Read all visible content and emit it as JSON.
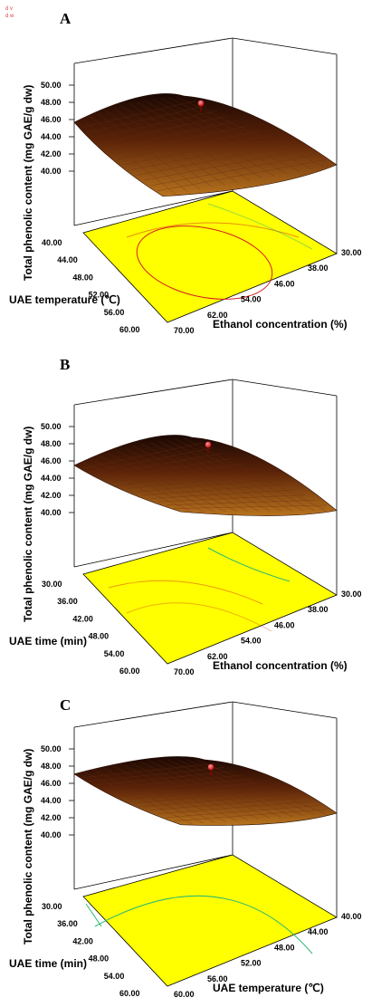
{
  "legend": {
    "line1": "d v",
    "line2": "d w"
  },
  "chart_data": [
    {
      "type": "surface",
      "panel": "A",
      "zlabel": "Total phenolic content (mg GAE/g dw)",
      "z_ticks": [
        "40.00",
        "42.00",
        "44.00",
        "46.00",
        "48.00",
        "50.00"
      ],
      "zlim": [
        40,
        50
      ],
      "x1_label": "UAE temperature (℃)",
      "x1_ticks": [
        "40.00",
        "44.00",
        "48.00",
        "52.00",
        "56.00",
        "60.00"
      ],
      "x2_label": "Ethanol concentration (%)",
      "x2_ticks": [
        "70.00",
        "62.00",
        "54.00",
        "46.00",
        "38.00",
        "30.00"
      ],
      "max_point": 48.2
    },
    {
      "type": "surface",
      "panel": "B",
      "zlabel": "Total phenolic content (mg GAE/g dw)",
      "z_ticks": [
        "40.00",
        "42.00",
        "44.00",
        "46.00",
        "48.00",
        "50.00"
      ],
      "zlim": [
        40,
        50
      ],
      "x1_label": "UAE time (min)",
      "x1_ticks": [
        "30.00",
        "36.00",
        "42.00",
        "48.00",
        "54.00",
        "60.00"
      ],
      "x2_label": "Ethanol concentration (%)",
      "x2_ticks": [
        "70.00",
        "62.00",
        "54.00",
        "46.00",
        "38.00",
        "30.00"
      ],
      "max_point": 48.2
    },
    {
      "type": "surface",
      "panel": "C",
      "zlabel": "Total phenolic content (mg GAE/g dw)",
      "z_ticks": [
        "40.00",
        "42.00",
        "44.00",
        "46.00",
        "48.00",
        "50.00"
      ],
      "zlim": [
        40,
        50
      ],
      "x1_label": "UAE time (min)",
      "x1_ticks": [
        "30.00",
        "36.00",
        "42.00",
        "48.00",
        "54.00",
        "60.00"
      ],
      "x2_label": "UAE temperature (℃)",
      "x2_ticks": [
        "60.00",
        "56.00",
        "52.00",
        "48.00",
        "44.00",
        "40.00"
      ],
      "max_point": 48.2
    }
  ]
}
